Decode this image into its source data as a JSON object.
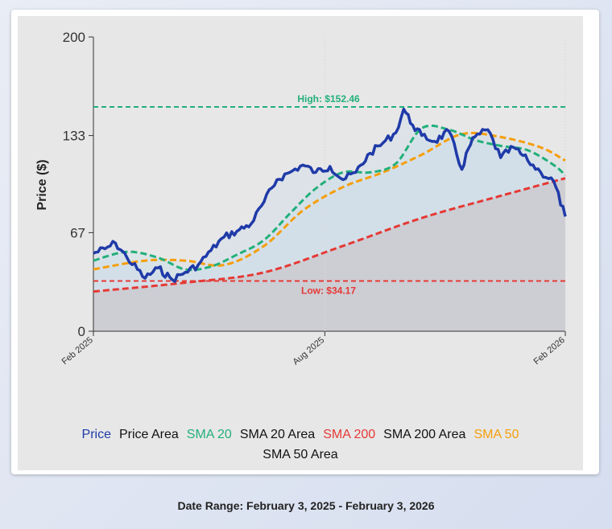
{
  "chart_data": {
    "type": "line",
    "title": "",
    "xlabel": "",
    "ylabel": "Price ($)",
    "ylim": [
      0,
      200
    ],
    "y_ticks": [
      "0",
      "67",
      "133",
      "200"
    ],
    "x_ticks": [
      "Feb 2025",
      "Aug 2025",
      "Feb 2026"
    ],
    "x_range": [
      "2025-02-03",
      "2026-02-03"
    ],
    "grid": false,
    "legend_position": "bottom",
    "reference_lines": [
      {
        "label": "High: $152.46",
        "value": 152.46,
        "color": "#22b07a"
      },
      {
        "label": "Low: $34.17",
        "value": 34.17,
        "color": "#e53935"
      }
    ],
    "series": [
      {
        "name": "Price",
        "color": "#1f3aa8",
        "x": [
          "2025-02-03",
          "2025-02-12",
          "2025-02-20",
          "2025-03-01",
          "2025-03-15",
          "2025-03-25",
          "2025-04-05",
          "2025-04-15",
          "2025-04-25",
          "2025-05-05",
          "2025-05-15",
          "2025-05-25",
          "2025-06-05",
          "2025-06-15",
          "2025-06-25",
          "2025-07-05",
          "2025-07-15",
          "2025-07-25",
          "2025-08-05",
          "2025-08-15",
          "2025-08-25",
          "2025-09-05",
          "2025-09-15",
          "2025-09-25",
          "2025-10-01",
          "2025-10-08",
          "2025-10-15",
          "2025-10-25",
          "2025-11-05",
          "2025-11-15",
          "2025-11-20",
          "2025-11-25",
          "2025-12-05",
          "2025-12-15",
          "2025-12-25",
          "2026-01-05",
          "2026-01-15",
          "2026-01-25",
          "2026-02-03"
        ],
        "values": [
          53,
          56,
          60,
          50,
          36,
          43,
          35,
          40,
          45,
          55,
          64,
          68,
          73,
          88,
          103,
          108,
          113,
          108,
          112,
          103,
          108,
          121,
          128,
          135,
          151,
          140,
          133,
          129,
          136,
          110,
          124,
          132,
          137,
          118,
          125,
          116,
          108,
          102,
          78
        ]
      },
      {
        "name": "SMA 20",
        "color": "#22b07a",
        "x": [
          "2025-02-03",
          "2025-03-01",
          "2025-03-25",
          "2025-04-15",
          "2025-05-05",
          "2025-05-25",
          "2025-06-15",
          "2025-07-05",
          "2025-07-25",
          "2025-08-15",
          "2025-09-05",
          "2025-09-25",
          "2025-10-15",
          "2025-11-05",
          "2025-11-25",
          "2025-12-15",
          "2026-01-05",
          "2026-01-25",
          "2026-02-03"
        ],
        "values": [
          48,
          54,
          50,
          42,
          44,
          52,
          62,
          80,
          97,
          108,
          108,
          114,
          138,
          137,
          130,
          126,
          123,
          113,
          106
        ]
      },
      {
        "name": "SMA 50",
        "color": "#f59e0b",
        "x": [
          "2025-02-03",
          "2025-03-15",
          "2025-04-15",
          "2025-05-15",
          "2025-06-15",
          "2025-07-15",
          "2025-08-15",
          "2025-09-15",
          "2025-10-15",
          "2025-11-15",
          "2025-12-15",
          "2026-01-15",
          "2026-02-03"
        ],
        "values": [
          42,
          48,
          48,
          45,
          58,
          82,
          98,
          108,
          120,
          134,
          132,
          125,
          116
        ]
      },
      {
        "name": "SMA 200",
        "color": "#e53935",
        "x": [
          "2025-02-03",
          "2025-04-15",
          "2025-06-15",
          "2025-08-15",
          "2025-10-15",
          "2025-12-15",
          "2026-02-03"
        ],
        "values": [
          27,
          33,
          40,
          58,
          77,
          92,
          104
        ]
      }
    ],
    "legend": [
      {
        "label": "Price",
        "color": "#1f3aa8"
      },
      {
        "label": "Price Area",
        "color": "#111111"
      },
      {
        "label": "SMA 20",
        "color": "#22b07a"
      },
      {
        "label": "SMA 20 Area",
        "color": "#111111"
      },
      {
        "label": "SMA 200",
        "color": "#e53935"
      },
      {
        "label": "SMA 200 Area",
        "color": "#111111"
      },
      {
        "label": "SMA 50",
        "color": "#f59e0b"
      },
      {
        "label": "SMA 50 Area",
        "color": "#111111"
      }
    ]
  },
  "footer": {
    "date_range": "Date Range: February 3, 2025 - February 3, 2026"
  }
}
